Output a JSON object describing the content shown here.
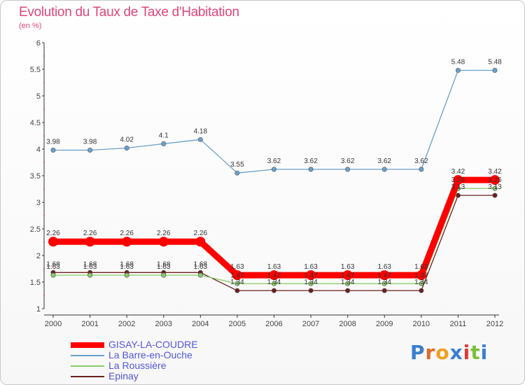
{
  "header": {
    "title": "Evolution du Taux de Taxe d'Habitation",
    "subtitle": "(en %)"
  },
  "logo": {
    "text": "Proxiti"
  },
  "chart_data": {
    "type": "line",
    "title": "Evolution du Taux de Taxe d'Habitation",
    "subtitle": "(en %)",
    "x": [
      2000,
      2001,
      2002,
      2003,
      2004,
      2005,
      2006,
      2007,
      2008,
      2009,
      2010,
      2011,
      2012
    ],
    "ylim": [
      1,
      6
    ],
    "yticks": [
      "1",
      "1.5",
      "2",
      "2.5",
      "3",
      "3.5",
      "4",
      "4.5",
      "5",
      "5.5",
      "6"
    ],
    "grid": false,
    "legend_position": "bottom-left",
    "series": [
      {
        "name": "GISAY-LA-COUDRE",
        "color": "#ff0000",
        "values": [
          2.26,
          2.26,
          2.26,
          2.26,
          2.26,
          1.63,
          1.63,
          1.63,
          1.63,
          1.63,
          1.63,
          3.42,
          3.42
        ],
        "labels": [
          "2.26",
          "2.26",
          "2.26",
          "2.26",
          "2.26",
          "1.63",
          "1.63",
          "1.63",
          "1.63",
          "1.63",
          "1.63",
          "3.42",
          "3.42"
        ]
      },
      {
        "name": "La Barre-en-Ouche",
        "color": "#6aa0cc",
        "values": [
          3.98,
          3.98,
          4.02,
          4.1,
          4.18,
          3.55,
          3.62,
          3.62,
          3.62,
          3.62,
          3.62,
          5.48,
          5.48
        ],
        "labels": [
          "3.98",
          "3.98",
          "4.02",
          "4.1",
          "4.18",
          "3.55",
          "3.62",
          "3.62",
          "3.62",
          "3.62",
          "3.62",
          "5.48",
          "5.48"
        ]
      },
      {
        "name": "La Roussière",
        "color": "#88cc66",
        "values": [
          1.63,
          1.63,
          1.63,
          1.63,
          1.63,
          1.47,
          1.47,
          1.47,
          1.47,
          1.47,
          1.47,
          3.26,
          3.26
        ],
        "labels": [
          "1.63",
          "1.63",
          "1.63",
          "1.63",
          "1.63",
          "1.47",
          "1.47",
          "1.47",
          "1.47",
          "1.47",
          "1.47",
          "3.26",
          "3.26"
        ]
      },
      {
        "name": "Epinay",
        "color": "#6b1f1f",
        "values": [
          1.68,
          1.68,
          1.68,
          1.68,
          1.68,
          1.34,
          1.34,
          1.34,
          1.34,
          1.34,
          1.34,
          3.13,
          3.13
        ],
        "labels": [
          "1.68",
          "1.68",
          "1.68",
          "1.68",
          "1.68",
          "1.34",
          "1.34",
          "1.34",
          "1.34",
          "1.34",
          "1.34",
          "3.13",
          "3.13"
        ]
      }
    ]
  }
}
